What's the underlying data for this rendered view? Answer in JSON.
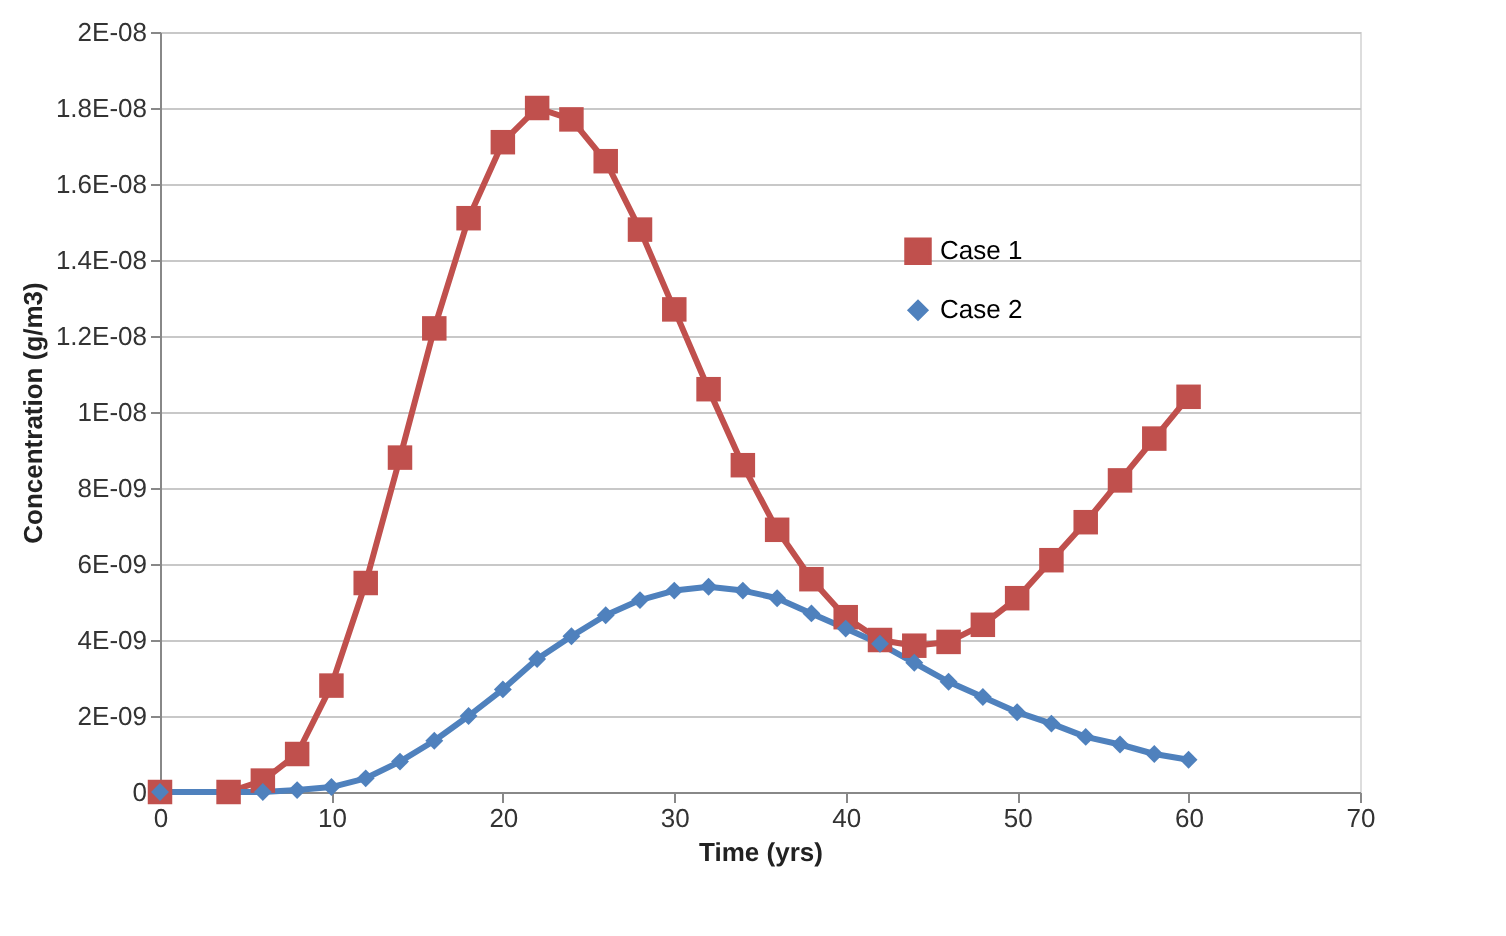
{
  "chart_data": {
    "type": "line",
    "xlabel": "Time (yrs)",
    "ylabel": "Concentration (g/m3)",
    "xlim": [
      0,
      70
    ],
    "xticks": [
      0,
      10,
      20,
      30,
      40,
      50,
      60,
      70
    ],
    "ylim": [
      0,
      2e-08
    ],
    "yticks": [
      0,
      {
        "value": 2e-09,
        "label": "2E-09"
      },
      {
        "value": 4e-09,
        "label": "4E-09"
      },
      {
        "value": 6e-09,
        "label": "6E-09"
      },
      {
        "value": 8e-09,
        "label": "8E-09"
      },
      {
        "value": 1e-08,
        "label": "1E-08"
      },
      {
        "value": 1.2e-08,
        "label": "1.2E-08"
      },
      {
        "value": 1.4e-08,
        "label": "1.4E-08"
      },
      {
        "value": 1.6e-08,
        "label": "1.6E-08"
      },
      {
        "value": 1.8e-08,
        "label": "1.8E-08"
      },
      {
        "value": 2e-08,
        "label": "2E-08"
      }
    ],
    "grid": "y",
    "legend": "right",
    "line_style": "solid",
    "series": [
      {
        "name": "Case 1",
        "color": "#c0504d",
        "marker": "square",
        "x": [
          0,
          4,
          6,
          8,
          10,
          12,
          14,
          16,
          18,
          20,
          22,
          24,
          26,
          28,
          30,
          32,
          34,
          36,
          38,
          40,
          42,
          44,
          46,
          48,
          50,
          52,
          54,
          56,
          58,
          60
        ],
        "values": [
          0,
          0,
          3e-10,
          1e-09,
          2.8e-09,
          5.5e-09,
          8.8e-09,
          1.22e-08,
          1.51e-08,
          1.71e-08,
          1.8e-08,
          1.77e-08,
          1.66e-08,
          1.48e-08,
          1.27e-08,
          1.06e-08,
          8.6e-09,
          6.9e-09,
          5.6e-09,
          4.6e-09,
          4e-09,
          3.85e-09,
          3.95e-09,
          4.4e-09,
          5.1e-09,
          6.1e-09,
          7.1e-09,
          8.2e-09,
          9.3e-09,
          1.04e-08
        ]
      },
      {
        "name": "Case 2",
        "color": "#4f81bd",
        "marker": "diamond",
        "x": [
          0,
          6,
          8,
          10,
          12,
          14,
          16,
          18,
          20,
          22,
          24,
          26,
          28,
          30,
          32,
          34,
          36,
          38,
          40,
          42,
          44,
          46,
          48,
          50,
          52,
          54,
          56,
          58,
          60
        ],
        "values": [
          0,
          0,
          5e-11,
          1.3e-10,
          3.6e-10,
          8e-10,
          1.35e-09,
          2e-09,
          2.7e-09,
          3.5e-09,
          4.1e-09,
          4.65e-09,
          5.05e-09,
          5.3e-09,
          5.4e-09,
          5.3e-09,
          5.1e-09,
          4.7e-09,
          4.3e-09,
          3.9e-09,
          3.4e-09,
          2.9e-09,
          2.5e-09,
          2.1e-09,
          1.8e-09,
          1.45e-09,
          1.25e-09,
          1e-09,
          8.5e-10
        ]
      }
    ]
  }
}
